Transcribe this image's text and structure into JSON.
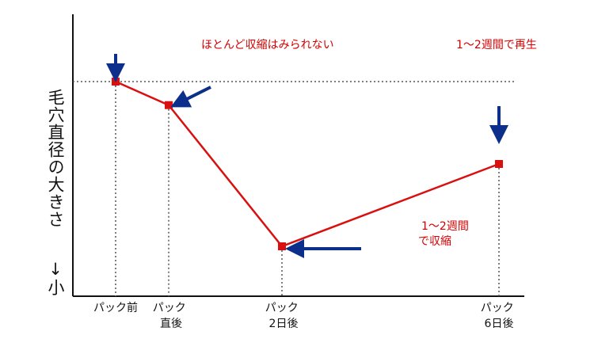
{
  "chart_data": {
    "type": "line",
    "categories": [
      "パック前",
      "パック直後",
      "パック2日後",
      "パック6日後"
    ],
    "x_tick_labels": [
      [
        "パック前"
      ],
      [
        "パック",
        "直後"
      ],
      [
        "パック",
        "2日後"
      ],
      [
        "パック",
        "6日後"
      ]
    ],
    "values": [
      100,
      80,
      -40,
      30
    ],
    "ylabel": "毛穴直径の大きさ",
    "ylabel_bottom": "↓小",
    "annotations": [
      "ほとんど収縮はみられない",
      "1～2週間で再生",
      "1～2週間",
      "で収縮"
    ],
    "reference_line": "dotted horizontal at initial level",
    "grid": false,
    "legend": "none"
  },
  "colors": {
    "line": "#d91010",
    "markers": "#d91010",
    "arrows": "#0b2f8a",
    "annotation_text": "#d40000",
    "axes": "#111111",
    "guides": "#555555"
  }
}
